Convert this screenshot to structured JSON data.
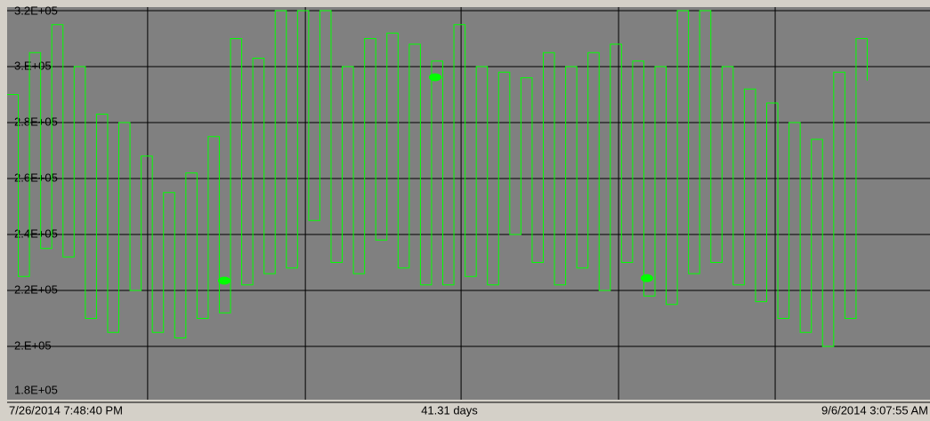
{
  "chart_data": {
    "type": "line",
    "series": [
      {
        "color": "#00ff00",
        "x": [
          0,
          0.5,
          1,
          1.5,
          2,
          2.5,
          3,
          3.5,
          4,
          4.5,
          5,
          5.5,
          6,
          6.5,
          7,
          7.5,
          8,
          8.5,
          9,
          9.5,
          10,
          10.5,
          11,
          11.5,
          12,
          12.5,
          13,
          13.5,
          14,
          14.5,
          15,
          15.5,
          16,
          16.5,
          17,
          17.5,
          18,
          18.5,
          19,
          19.5,
          20,
          20.5,
          21,
          21.5,
          22,
          22.5,
          23,
          23.5,
          24,
          24.5,
          25,
          25.5,
          26,
          26.5,
          27,
          27.5,
          28,
          28.5,
          29,
          29.5,
          30,
          30.5,
          31,
          31.5,
          32,
          32.5,
          33,
          33.5,
          34,
          34.5,
          35,
          35.5,
          36,
          36.5,
          37,
          37.5,
          38,
          38.5
        ],
        "values": [
          290000,
          225000,
          305000,
          235000,
          315000,
          232000,
          300000,
          210000,
          283000,
          205000,
          280000,
          220000,
          268000,
          205000,
          255000,
          203000,
          262000,
          210000,
          275000,
          212000,
          310000,
          222000,
          303000,
          226000,
          320000,
          228000,
          320000,
          245000,
          320000,
          230000,
          300000,
          226000,
          310000,
          238000,
          312000,
          228000,
          308000,
          222000,
          302000,
          222000,
          315000,
          225000,
          300000,
          222000,
          298000,
          240000,
          296000,
          230000,
          305000,
          222000,
          300000,
          228000,
          305000,
          220000,
          308000,
          230000,
          302000,
          218000,
          300000,
          215000,
          320000,
          226000,
          320000,
          230000,
          300000,
          222000,
          292000,
          216000,
          287000,
          210000,
          280000,
          205000,
          274000,
          200000,
          298000,
          210000,
          310000,
          295000
        ]
      }
    ],
    "markers": {
      "color": "#00ff00",
      "x": [
        9.72,
        19.16,
        28.64
      ],
      "values": [
        223500,
        296200,
        224400
      ]
    },
    "xlim": [
      0,
      41.31
    ],
    "xgrid": [
      6.29,
      13.35,
      20.32,
      27.37,
      34.38
    ],
    "x_labels": [
      "7/26/2014 7:48:40 PM",
      "41.31 days",
      "9/6/2014 3:07:55 AM"
    ],
    "ylim": [
      180000,
      320000
    ],
    "yticks": [
      {
        "value": 180000,
        "label": "1.8E+05"
      },
      {
        "value": 200000,
        "label": "2.E+05"
      },
      {
        "value": 220000,
        "label": "2.2E+05"
      },
      {
        "value": 240000,
        "label": "2.4E+05"
      },
      {
        "value": 260000,
        "label": "2.6E+05"
      },
      {
        "value": 280000,
        "label": "2.8E+05"
      },
      {
        "value": 300000,
        "label": "3.E+05"
      },
      {
        "value": 320000,
        "label": "3.2E+05"
      }
    ],
    "grid": true
  }
}
